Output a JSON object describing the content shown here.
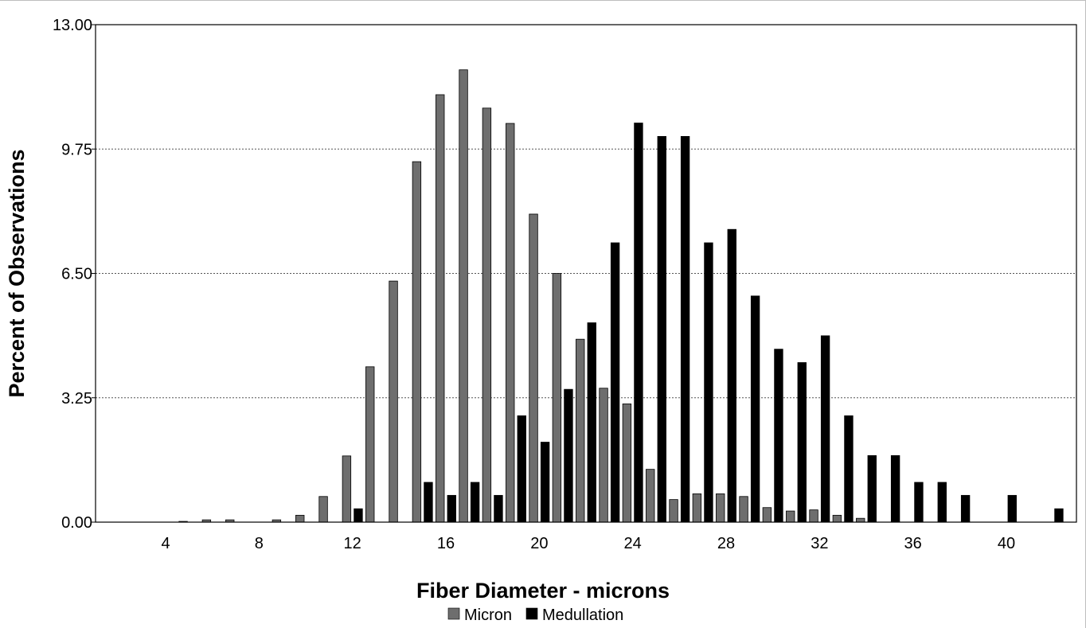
{
  "chart_data": {
    "type": "bar",
    "title": "",
    "xlabel": "Fiber Diameter - microns",
    "ylabel": "Percent of Observations",
    "ylim": [
      0,
      13
    ],
    "xlim": [
      1,
      43
    ],
    "y_ticks": [
      "0.00",
      "3.25",
      "6.50",
      "9.75",
      "13.00"
    ],
    "x_ticks": [
      "4",
      "8",
      "12",
      "16",
      "20",
      "24",
      "28",
      "32",
      "36",
      "40"
    ],
    "grid": "horizontal dotted at 3.25, 6.50, 9.75",
    "legend_position": "bottom-center",
    "x": [
      5,
      6,
      7,
      8,
      9,
      10,
      11,
      12,
      13,
      14,
      15,
      16,
      17,
      18,
      19,
      20,
      21,
      22,
      23,
      24,
      25,
      26,
      27,
      28,
      29,
      30,
      31,
      32,
      33,
      34,
      35,
      36,
      37,
      38,
      39,
      40,
      41,
      42
    ],
    "series": [
      {
        "name": "Micron",
        "color": "#6e6e6e",
        "values": [
          0.02,
          0.06,
          0.06,
          0,
          0.06,
          0.18,
          0.67,
          1.73,
          4.06,
          6.3,
          9.42,
          11.17,
          11.82,
          10.82,
          10.42,
          8.05,
          6.5,
          4.78,
          3.5,
          3.09,
          1.38,
          0.59,
          0.74,
          0.74,
          0.67,
          0.38,
          0.29,
          0.32,
          0.18,
          0.1,
          0,
          0,
          0,
          0,
          0,
          0,
          0,
          0
        ]
      },
      {
        "name": "Medullation",
        "color": "#000000",
        "values": [
          0,
          0,
          0,
          0,
          0,
          0,
          0,
          0.35,
          0,
          0,
          1.04,
          0.7,
          1.04,
          0.7,
          2.78,
          2.09,
          3.47,
          5.21,
          7.3,
          10.43,
          10.08,
          10.08,
          7.3,
          7.65,
          5.91,
          4.52,
          4.17,
          4.87,
          2.78,
          1.74,
          1.74,
          1.04,
          1.04,
          0.7,
          0,
          0.7,
          0,
          0.35
        ]
      }
    ]
  }
}
